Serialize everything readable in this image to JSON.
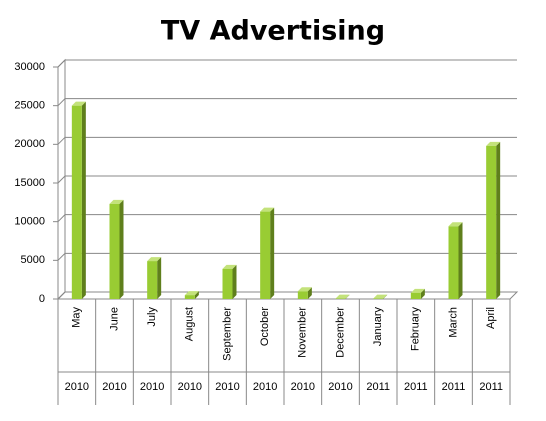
{
  "chart_data": {
    "type": "bar3d",
    "title": "TV Advertising",
    "categories": [
      "May",
      "June",
      "July",
      "August",
      "September",
      "October",
      "November",
      "December",
      "January",
      "February",
      "March",
      "April"
    ],
    "category_groups": [
      "2010",
      "2010",
      "2010",
      "2010",
      "2010",
      "2010",
      "2010",
      "2010",
      "2011",
      "2011",
      "2011",
      "2011"
    ],
    "values": [
      25000,
      12300,
      4900,
      500,
      3900,
      11300,
      1000,
      50,
      50,
      800,
      9400,
      19800
    ],
    "color": "#99cc33",
    "ylim": [
      0,
      30000
    ],
    "yticks": [
      0,
      5000,
      10000,
      15000,
      20000,
      25000,
      30000
    ],
    "grid": true
  }
}
